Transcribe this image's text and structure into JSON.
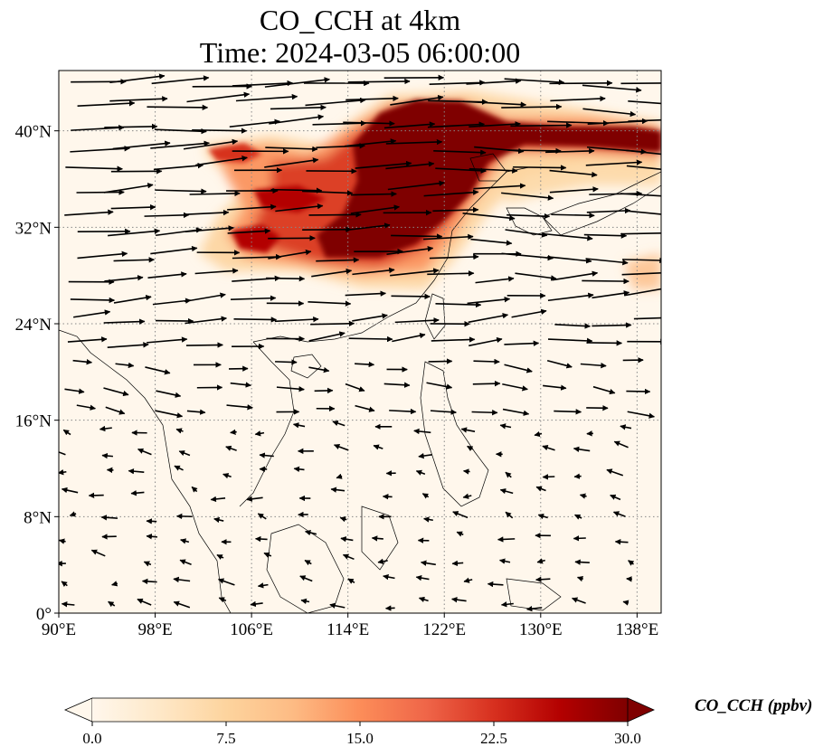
{
  "title": {
    "line1": "CO_CCH at 4km",
    "line2": "Time: 2024-03-05 06:00:00"
  },
  "map": {
    "projection": "PlateCarree",
    "lon_range": [
      90,
      140
    ],
    "lat_range": [
      0,
      45
    ],
    "gridlines": "dotted",
    "lon_ticks": [
      90,
      98,
      106,
      114,
      122,
      130,
      138
    ],
    "lon_tick_labels": [
      "90°E",
      "98°E",
      "106°E",
      "114°E",
      "122°E",
      "130°E",
      "138°E"
    ],
    "lat_ticks": [
      0,
      8,
      16,
      24,
      32,
      40
    ],
    "lat_tick_labels": [
      "0°",
      "8°N",
      "16°N",
      "24°N",
      "32°N",
      "40°N"
    ],
    "field": "CO_CCH",
    "vectors": "wind arrows, westerly north of ~20°N, easterly in the tropics"
  },
  "colorbar": {
    "label": "CO_CCH (ppbv)",
    "cmap": "OrRd",
    "range": [
      0.0,
      30.0
    ],
    "extend": "both",
    "orientation": "horizontal",
    "ticks": [
      0.0,
      7.5,
      15.0,
      22.5,
      30.0
    ],
    "tick_labels": [
      "0.0",
      "7.5",
      "15.0",
      "22.5",
      "30.0"
    ],
    "colors": [
      "#fff7ec",
      "#fee8c8",
      "#fdd49e",
      "#fdbb84",
      "#fc8d59",
      "#ef6548",
      "#d7301f",
      "#b30000",
      "#7f0000"
    ]
  }
}
